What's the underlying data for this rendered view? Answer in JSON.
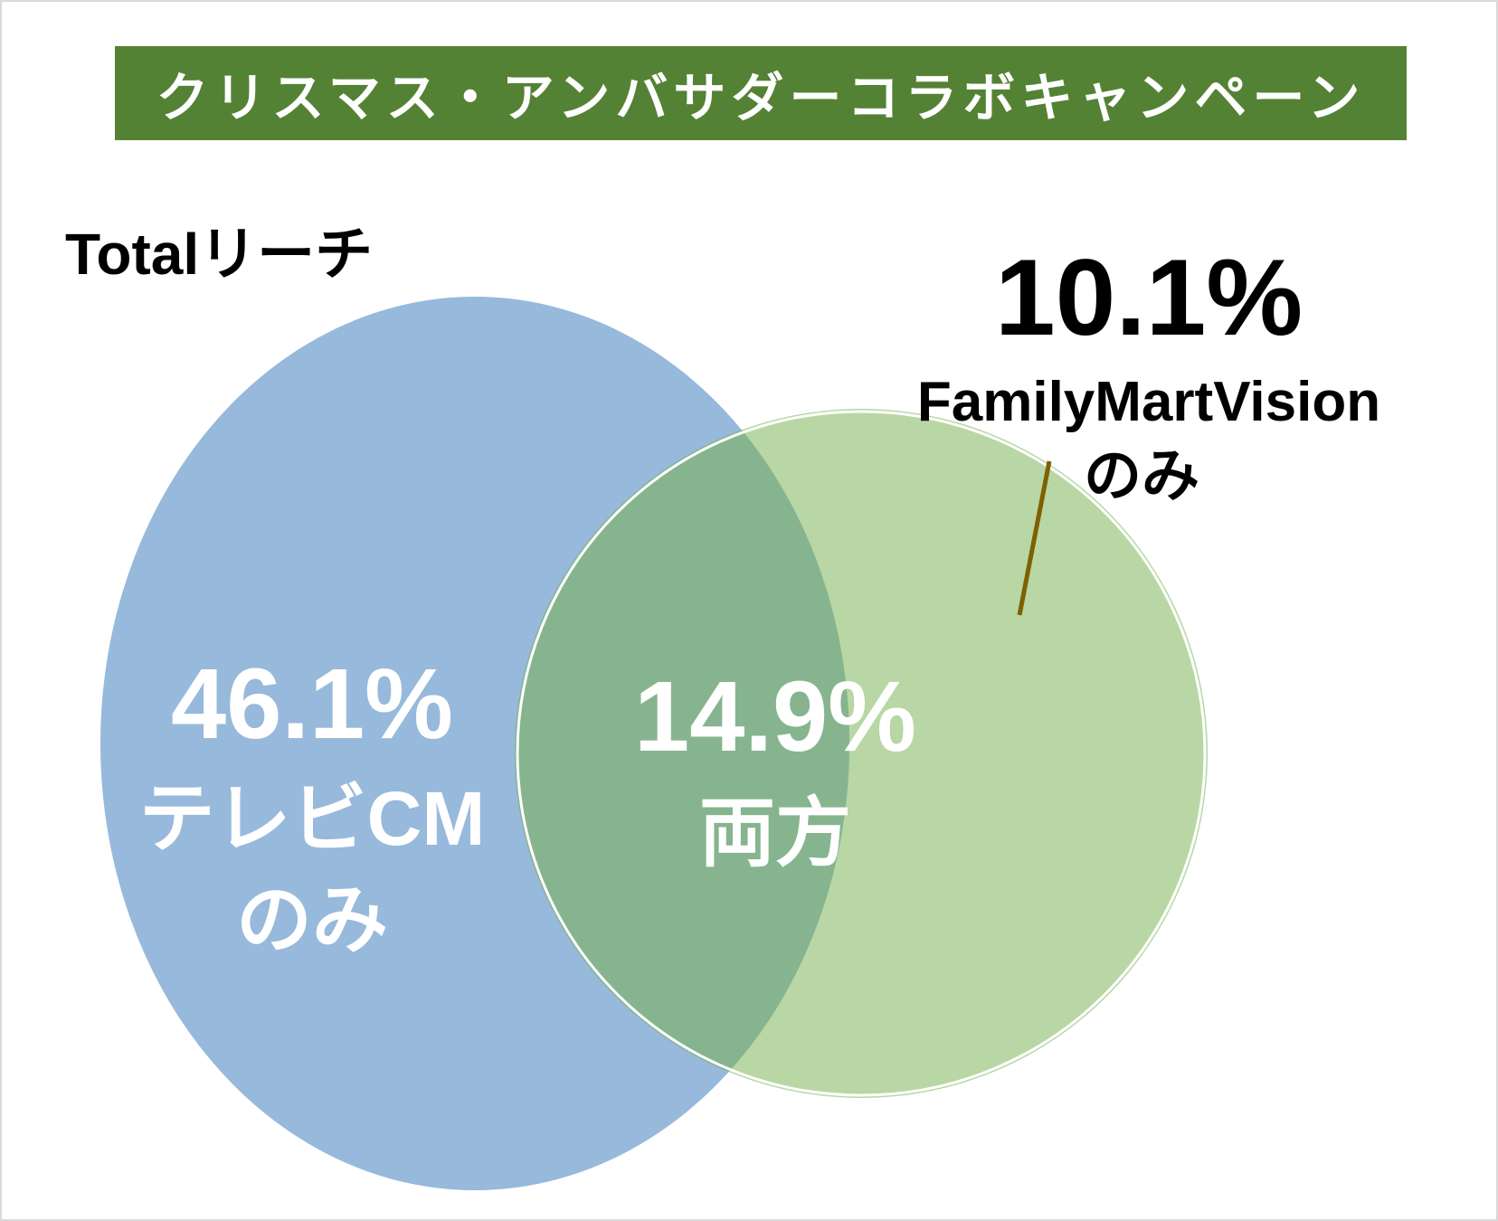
{
  "title": "クリスマス・アンバサダーコラボキャンペーン",
  "total_label": "Totalリーチ",
  "colors": {
    "title_bg": "#548235",
    "tv_circle": "#97b9db",
    "fmv_circle": "#b8d7a4",
    "overlap": "#86b48e",
    "leader_line": "#7f6000"
  },
  "segments": {
    "tv_only": {
      "value": "46.1%",
      "label_line1": "テレビCM",
      "label_line2": "のみ"
    },
    "both": {
      "value": "14.9%",
      "label_line1": "両方"
    },
    "fmv_only": {
      "value": "10.1%",
      "label_line1": "FamilyMartVision",
      "label_line2": "のみ"
    }
  }
}
